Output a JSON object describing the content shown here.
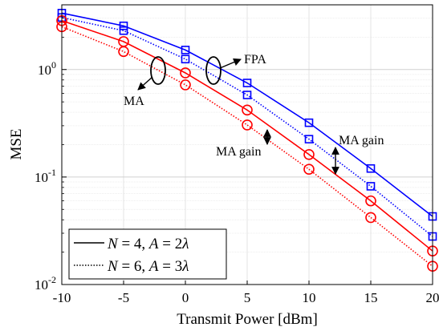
{
  "chart_data": {
    "type": "line",
    "xlabel": "Transmit Power [dBm]",
    "ylabel": "MSE",
    "x": [
      -10,
      -5,
      0,
      5,
      10,
      15,
      20
    ],
    "xlim": [
      -10,
      20
    ],
    "ylim": [
      0.01,
      4
    ],
    "yscale": "log",
    "grid": true,
    "xticks": [
      "-10",
      "-5",
      "0",
      "5",
      "10",
      "15",
      "20"
    ],
    "yticks": [
      {
        "value": 0.01,
        "base": "10",
        "exp": "-2"
      },
      {
        "value": 0.1,
        "base": "10",
        "exp": "-1"
      },
      {
        "value": 1,
        "base": "10",
        "exp": "0"
      }
    ],
    "series": [
      {
        "color": "#0000ff",
        "dash": "solid",
        "marker": "square",
        "values": [
          3.35,
          2.55,
          1.52,
          0.75,
          0.32,
          0.12,
          0.043
        ]
      },
      {
        "color": "#0000ff",
        "dash": "dotted",
        "marker": "square",
        "values": [
          3.05,
          2.3,
          1.25,
          0.58,
          0.225,
          0.082,
          0.028
        ]
      },
      {
        "color": "#ff0000",
        "dash": "solid",
        "marker": "circle",
        "values": [
          2.85,
          1.82,
          0.93,
          0.42,
          0.162,
          0.06,
          0.0205
        ]
      },
      {
        "color": "#ff0000",
        "dash": "dotted",
        "marker": "circle",
        "values": [
          2.5,
          1.47,
          0.72,
          0.305,
          0.118,
          0.042,
          0.0148
        ]
      }
    ],
    "legend": {
      "placement": "bottom-left",
      "entries": [
        {
          "dash": "solid",
          "n": "N",
          "n_val": "= 4,",
          "a": "A",
          "a_val": "= 2",
          "lambda": "λ"
        },
        {
          "dash": "dotted",
          "n": "N",
          "n_val": "= 6,",
          "a": "A",
          "a_val": "= 3",
          "lambda": "λ"
        }
      ]
    },
    "annotations": {
      "fpa": "FPA",
      "ma": "MA",
      "ma_gain_1": "MA gain",
      "ma_gain_2": "MA gain"
    }
  }
}
